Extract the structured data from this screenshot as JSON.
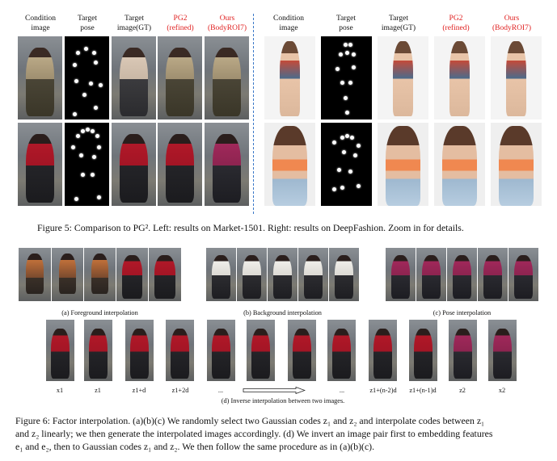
{
  "fig5": {
    "headers_left": [
      "Condition\nimage",
      "Target\npose",
      "Target\nimage(GT)",
      "PG2\n(refined)",
      "Ours\n(BodyROI7)"
    ],
    "headers_right": [
      "Condition\nimage",
      "Target\npose",
      "Target\nimage(GT)",
      "PG2\n(refined)",
      "Ours\n(BodyROI7)"
    ],
    "caption": "Figure 5: Comparison to PG². Left: results on Market-1501. Right: results on DeepFashion. Zoom in for details.",
    "colors": {
      "method_header": "#e02020",
      "divider": "#3a78c8"
    }
  },
  "fig6": {
    "sub_a": "(a) Foreground interpolation",
    "sub_b": "(b) Background interpolation",
    "sub_c": "(c) Pose interpolation",
    "sub_d": "(d) Inverse interpolation between two images.",
    "seq_labels": [
      "x1",
      "z1",
      "z1+d",
      "z1+2d",
      "...",
      "...",
      "z1+(n-2)d",
      "z1+(n-1)d",
      "z2",
      "x2"
    ],
    "caption_l1": "Figure 6: Factor interpolation. (a)(b)(c) We randomly select two Gaussian codes z₁ and z₂ and interpolate codes between z₁",
    "caption_l2": "and z₂ linearly; we then generate the interpolated images accordingly. (d) We invert an image pair first to embedding features",
    "caption_l3": "e₁ and e₂, then to Gaussian codes z₁ and z₂. We then follow the same procedure as in (a)(b)(c)."
  }
}
